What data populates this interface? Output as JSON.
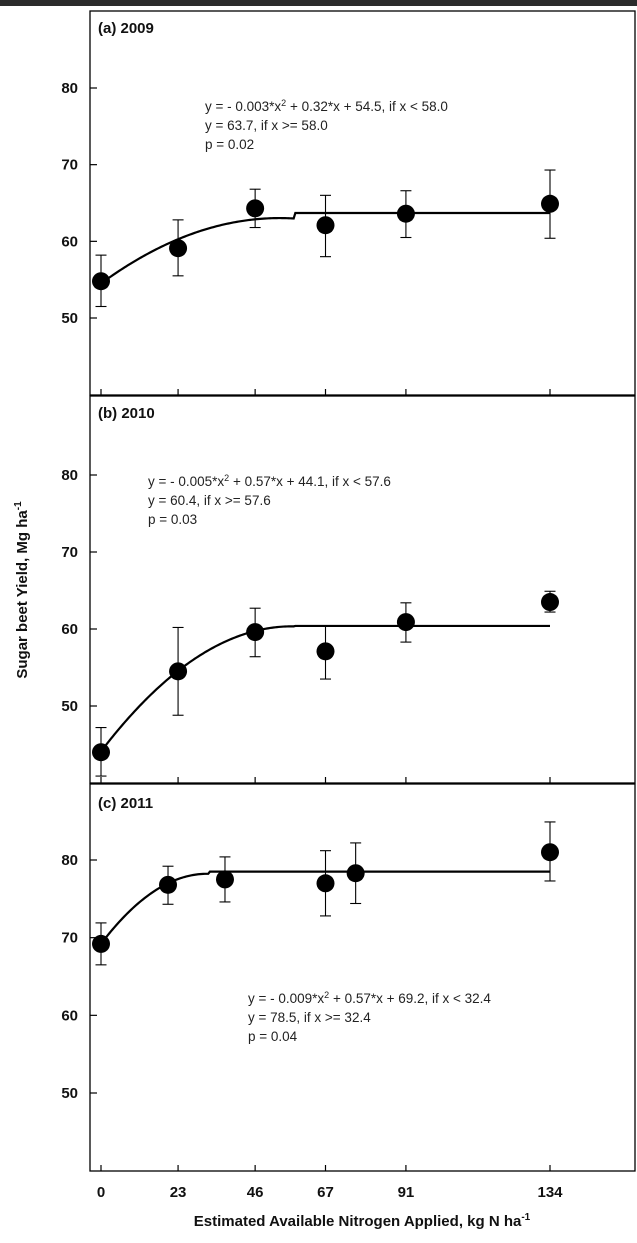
{
  "chart_data": {
    "type": "scatter",
    "x_categories": [
      0,
      23,
      46,
      67,
      91,
      134
    ],
    "xlabel": "Estimated Available Nitrogen Applied, kg N ha",
    "xlabel_sup": "-1",
    "ylabel": "Sugar beet Yield, Mg ha",
    "ylabel_sup": "-1",
    "panels": [
      {
        "title": "(a) 2009",
        "ylim": [
          40,
          85
        ],
        "yticks": [
          50,
          60,
          70,
          80
        ],
        "points": [
          {
            "x": 0,
            "y": 54.8,
            "lo": 51.5,
            "hi": 58.2
          },
          {
            "x": 23,
            "y": 59.1,
            "lo": 55.5,
            "hi": 62.8
          },
          {
            "x": 46,
            "y": 64.3,
            "lo": 61.8,
            "hi": 66.8
          },
          {
            "x": 67,
            "y": 62.1,
            "lo": 58.0,
            "hi": 66.0
          },
          {
            "x": 91,
            "y": 63.6,
            "lo": 60.5,
            "hi": 66.6
          },
          {
            "x": 134,
            "y": 64.9,
            "lo": 60.4,
            "hi": 69.3
          }
        ],
        "fit": {
          "a": -0.003,
          "b": 0.32,
          "c": 54.5,
          "join": 58.0,
          "plateau": 63.7
        },
        "eq_line1_pre": "y = - 0.003*x",
        "eq_line1_sup": "2",
        "eq_line1_post": " + 0.32*x + 54.5, if x < 58.0",
        "eq_line2": "y = 63.7, if x >= 58.0",
        "eq_line3": "p = 0.02"
      },
      {
        "title": "(b) 2010",
        "ylim": [
          40,
          85
        ],
        "yticks": [
          50,
          60,
          70,
          80
        ],
        "points": [
          {
            "x": 0,
            "y": 44.0,
            "lo": 40.9,
            "hi": 47.2
          },
          {
            "x": 23,
            "y": 54.5,
            "lo": 48.8,
            "hi": 60.2
          },
          {
            "x": 46,
            "y": 59.6,
            "lo": 56.4,
            "hi": 62.7
          },
          {
            "x": 67,
            "y": 57.1,
            "lo": 53.5,
            "hi": 60.4
          },
          {
            "x": 91,
            "y": 60.9,
            "lo": 58.3,
            "hi": 63.4
          },
          {
            "x": 134,
            "y": 63.5,
            "lo": 62.2,
            "hi": 64.9
          }
        ],
        "fit": {
          "a": -0.005,
          "b": 0.57,
          "c": 44.1,
          "join": 57.6,
          "plateau": 60.4
        },
        "eq_line1_pre": "y = - 0.005*x",
        "eq_line1_sup": "2",
        "eq_line1_post": " + 0.57*x + 44.1, if x < 57.6",
        "eq_line2": "y = 60.4, if x >= 57.6",
        "eq_line3": "p = 0.03"
      },
      {
        "title": "(c) 2011",
        "ylim": [
          40,
          85
        ],
        "yticks": [
          50,
          60,
          70,
          80
        ],
        "points": [
          {
            "x": 0,
            "y": 69.2,
            "lo": 66.5,
            "hi": 71.9
          },
          {
            "x": 20,
            "y": 76.8,
            "lo": 74.3,
            "hi": 79.2
          },
          {
            "x": 37,
            "y": 77.5,
            "lo": 74.6,
            "hi": 80.4
          },
          {
            "x": 67,
            "y": 77.0,
            "lo": 72.8,
            "hi": 81.2
          },
          {
            "x": 76,
            "y": 78.3,
            "lo": 74.4,
            "hi": 82.2
          },
          {
            "x": 134,
            "y": 81.0,
            "lo": 77.3,
            "hi": 84.9
          }
        ],
        "fit": {
          "a": -0.009,
          "b": 0.57,
          "c": 69.2,
          "join": 32.4,
          "plateau": 78.5
        },
        "eq_line1_pre": "y = - 0.009*x",
        "eq_line1_sup": "2",
        "eq_line1_post": " + 0.57*x + 69.2, if x < 32.4",
        "eq_line2": "y = 78.5, if x >= 32.4",
        "eq_line3": "p = 0.04"
      }
    ]
  }
}
